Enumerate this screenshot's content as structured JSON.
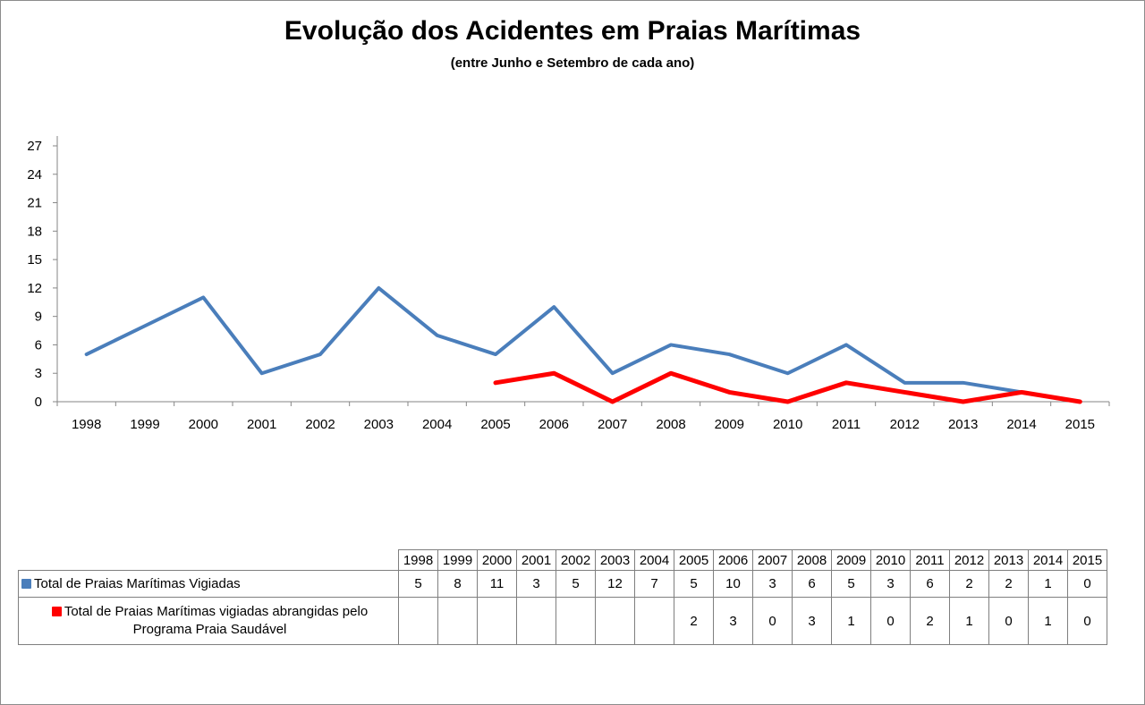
{
  "chart_data": {
    "type": "line",
    "title": "Evolução dos Acidentes em Praias Marítimas",
    "subtitle": "(entre Junho e Setembro de cada ano)",
    "xlabel": "",
    "ylabel": "",
    "ylim": [
      0,
      27
    ],
    "yticks": [
      0,
      3,
      6,
      9,
      12,
      15,
      18,
      21,
      24,
      27
    ],
    "grid": false,
    "legend": "data-table-bottom",
    "categories": [
      "1998",
      "1999",
      "2000",
      "2001",
      "2002",
      "2003",
      "2004",
      "2005",
      "2006",
      "2007",
      "2008",
      "2009",
      "2010",
      "2011",
      "2012",
      "2013",
      "2014",
      "2015"
    ],
    "series": [
      {
        "name": "Total de Praias Marítimas Vigiadas",
        "color": "#4a7ebb",
        "values": [
          5,
          8,
          11,
          3,
          5,
          12,
          7,
          5,
          10,
          3,
          6,
          5,
          3,
          6,
          2,
          2,
          1,
          0
        ]
      },
      {
        "name": "Total de Praias Marítimas vigiadas abrangidas pelo Programa Praia Saudável",
        "name_line1": "Total de Praias Marítimas vigiadas abrangidas pelo",
        "name_line2": "Programa Praia Saudável",
        "color": "#ff0000",
        "values": [
          null,
          null,
          null,
          null,
          null,
          null,
          null,
          2,
          3,
          0,
          3,
          1,
          0,
          2,
          1,
          0,
          1,
          0
        ]
      }
    ]
  }
}
